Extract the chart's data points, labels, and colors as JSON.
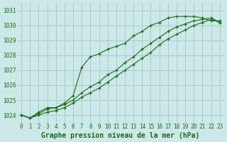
{
  "xlabel": "Graphe pression niveau de la mer (hPa)",
  "hours": [
    0,
    1,
    2,
    3,
    4,
    5,
    6,
    7,
    8,
    9,
    10,
    11,
    12,
    13,
    14,
    15,
    16,
    17,
    18,
    19,
    20,
    21,
    22,
    23
  ],
  "line1": [
    1024.0,
    1023.8,
    1024.2,
    1024.5,
    1024.5,
    1024.8,
    1025.3,
    1027.2,
    1027.9,
    1028.1,
    1028.4,
    1028.6,
    1028.8,
    1029.3,
    1029.6,
    1030.0,
    1030.2,
    1030.5,
    1030.6,
    1030.6,
    1030.6,
    1030.5,
    1030.3,
    1030.3
  ],
  "line2": [
    1024.0,
    1023.8,
    1024.1,
    1024.4,
    1024.5,
    1024.7,
    1025.0,
    1025.5,
    1025.9,
    1026.2,
    1026.7,
    1027.0,
    1027.5,
    1027.9,
    1028.4,
    1028.8,
    1029.2,
    1029.6,
    1029.9,
    1030.1,
    1030.3,
    1030.4,
    1030.5,
    1030.2
  ],
  "line3": [
    1024.0,
    1023.8,
    1024.0,
    1024.2,
    1024.3,
    1024.5,
    1024.8,
    1025.2,
    1025.5,
    1025.8,
    1026.2,
    1026.6,
    1027.0,
    1027.4,
    1027.8,
    1028.2,
    1028.7,
    1029.1,
    1029.4,
    1029.7,
    1030.0,
    1030.2,
    1030.4,
    1030.2
  ],
  "bg_color": "#cce8e8",
  "grid_color": "#aacccc",
  "line_color": "#1a6b1a",
  "marker": "+",
  "ylim_min": 1023.5,
  "ylim_max": 1031.5,
  "xlim_min": -0.5,
  "xlim_max": 23.5,
  "yticks": [
    1024,
    1025,
    1026,
    1027,
    1028,
    1029,
    1030,
    1031
  ],
  "xticks": [
    0,
    1,
    2,
    3,
    4,
    5,
    6,
    7,
    8,
    9,
    10,
    11,
    12,
    13,
    14,
    15,
    16,
    17,
    18,
    19,
    20,
    21,
    22,
    23
  ],
  "tick_fontsize": 5.5,
  "label_fontsize": 7
}
